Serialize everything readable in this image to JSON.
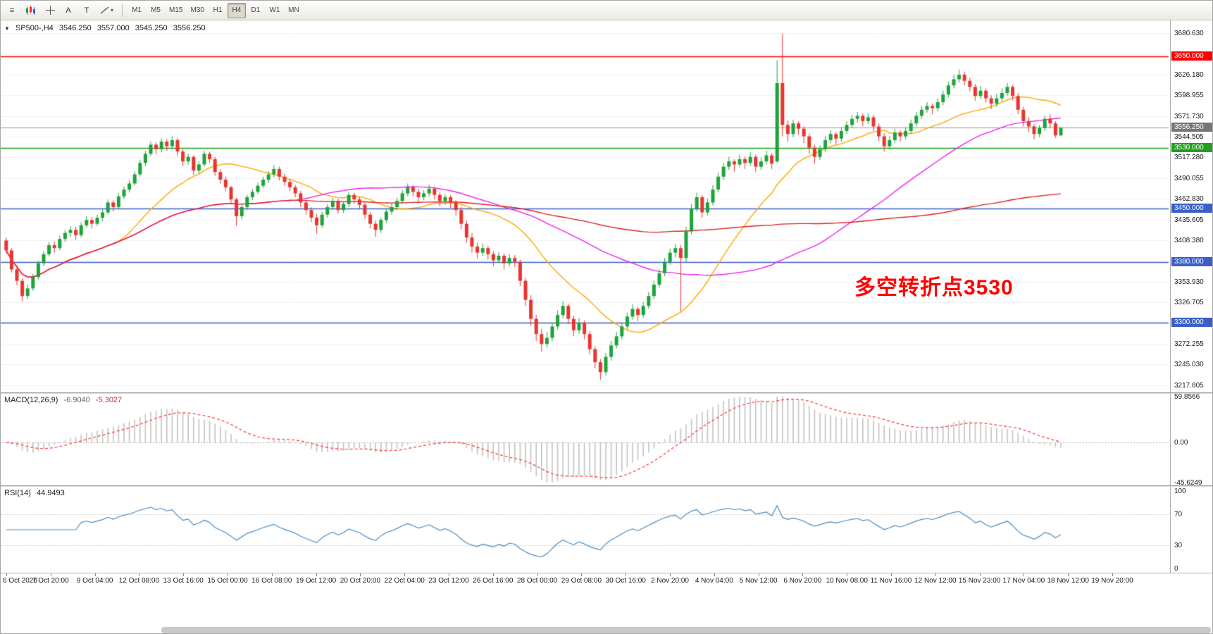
{
  "toolbar": {
    "menu_glyph": "≡",
    "text_tool_label": "A",
    "shape_tool_label": "T",
    "timeframes": [
      "M1",
      "M5",
      "M15",
      "M30",
      "H1",
      "H4",
      "D1",
      "W1",
      "MN"
    ],
    "active_timeframe": "H4"
  },
  "icons": {
    "menu": "≡",
    "dropdown": "▾",
    "collapse": "▼",
    "crosshair": "+"
  },
  "chart": {
    "symbol_label": "SP500-,H4",
    "open": "3546.250",
    "high": "3557.000",
    "low": "3545.250",
    "close": "3556.250",
    "annotation": {
      "text": "多空转折点3530",
      "color": "#ff0000"
    },
    "levels": [
      {
        "price": 3650,
        "label": "3650.000",
        "color": "#ff0000"
      },
      {
        "price": 3530,
        "label": "3530.000",
        "color": "#1fa11f"
      },
      {
        "price": 3450,
        "label": "3450.000",
        "color": "#3a5fc8"
      },
      {
        "price": 3380,
        "label": "3380.000",
        "color": "#3a5fc8"
      },
      {
        "price": 3300,
        "label": "3300.000",
        "color": "#3a5fc8"
      }
    ],
    "current_price": {
      "value": 3556.25,
      "label": "3556.250",
      "badge_color": "#75757d",
      "line_color": "#9a9a9a"
    },
    "price_axis_ticks": [
      "3680.630",
      "3653.405",
      "3626.180",
      "3598.955",
      "3571.730",
      "3544.505",
      "3517.280",
      "3490.055",
      "3462.830",
      "3435.605",
      "3408.380",
      "3381.155",
      "3353.930",
      "3326.705",
      "3299.480",
      "3272.255",
      "3245.030",
      "3217.805"
    ],
    "time_axis": [
      "6 Oct 2020",
      "7 Oct 20:00",
      "9 Oct 04:00",
      "12 Oct 08:00",
      "13 Oct 16:00",
      "15 Oct 00:00",
      "16 Oct 08:00",
      "19 Oct 12:00",
      "20 Oct 20:00",
      "22 Oct 04:00",
      "23 Oct 12:00",
      "26 Oct 16:00",
      "28 Oct 00:00",
      "29 Oct 08:00",
      "30 Oct 16:00",
      "2 Nov 20:00",
      "4 Nov 04:00",
      "5 Nov 12:00",
      "6 Nov 20:00",
      "10 Nov 08:00",
      "11 Nov 16:00",
      "12 Nov 12:00",
      "15 Nov 23:00",
      "17 Nov 04:00",
      "18 Nov 12:00",
      "19 Nov 20:00"
    ]
  },
  "indicators": {
    "macd": {
      "label": "MACD(12,26,9)",
      "value_main": "-6.9040",
      "value_signal": "-5.3027",
      "fast": 12,
      "slow": 26,
      "signal": 9,
      "scale": {
        "max": "59.8566",
        "mid": "0.00",
        "min": "-45.6249"
      }
    },
    "rsi": {
      "label": "RSI(14)",
      "value": "44.9493",
      "period": 14,
      "levels": [
        70,
        30
      ],
      "scale": [
        "100",
        "70",
        "30",
        "0"
      ]
    }
  },
  "colors": {
    "up": "#1fa23a",
    "down": "#e8352e",
    "grid": "#f0f0f0",
    "macd_hist": "#c2c2c2",
    "macd_signal": "#ff3333",
    "rsi_line": "#4a8bc2",
    "level_dotted": "#c8c8c8"
  },
  "chart_data": {
    "type": "candlestick",
    "title": "SP500-,H4",
    "ylim": [
      3212,
      3690
    ],
    "rsi_ylim": [
      0,
      100
    ],
    "moving_averages": [
      {
        "name": "fast",
        "period": 21,
        "color": "#ffa500"
      },
      {
        "name": "medium",
        "period": 55,
        "color": "#ee22ee"
      },
      {
        "name": "slow",
        "period": 120,
        "color": "#dd2222"
      }
    ],
    "ohlc": [
      [
        3408,
        3412,
        3390,
        3395
      ],
      [
        3395,
        3398,
        3366,
        3370
      ],
      [
        3370,
        3376,
        3349,
        3355
      ],
      [
        3355,
        3358,
        3328,
        3335
      ],
      [
        3335,
        3350,
        3331,
        3345
      ],
      [
        3345,
        3364,
        3342,
        3360
      ],
      [
        3360,
        3381,
        3357,
        3378
      ],
      [
        3378,
        3394,
        3374,
        3390
      ],
      [
        3390,
        3406,
        3387,
        3402
      ],
      [
        3402,
        3407,
        3392,
        3398
      ],
      [
        3398,
        3414,
        3395,
        3410
      ],
      [
        3410,
        3422,
        3406,
        3418
      ],
      [
        3418,
        3427,
        3413,
        3422
      ],
      [
        3422,
        3426,
        3409,
        3415
      ],
      [
        3415,
        3432,
        3412,
        3428
      ],
      [
        3428,
        3440,
        3425,
        3435
      ],
      [
        3435,
        3439,
        3424,
        3430
      ],
      [
        3430,
        3442,
        3427,
        3438
      ],
      [
        3438,
        3449,
        3434,
        3445
      ],
      [
        3445,
        3462,
        3442,
        3458
      ],
      [
        3458,
        3461,
        3446,
        3452
      ],
      [
        3452,
        3470,
        3449,
        3466
      ],
      [
        3466,
        3479,
        3463,
        3475
      ],
      [
        3475,
        3487,
        3471,
        3483
      ],
      [
        3483,
        3499,
        3480,
        3495
      ],
      [
        3495,
        3514,
        3492,
        3510
      ],
      [
        3510,
        3526,
        3506,
        3522
      ],
      [
        3522,
        3538,
        3519,
        3534
      ],
      [
        3534,
        3537,
        3521,
        3528
      ],
      [
        3528,
        3542,
        3524,
        3538
      ],
      [
        3538,
        3541,
        3526,
        3532
      ],
      [
        3532,
        3545,
        3529,
        3540
      ],
      [
        3540,
        3543,
        3519,
        3525
      ],
      [
        3525,
        3528,
        3506,
        3512
      ],
      [
        3512,
        3522,
        3508,
        3518
      ],
      [
        3518,
        3520,
        3494,
        3500
      ],
      [
        3500,
        3512,
        3496,
        3508
      ],
      [
        3508,
        3526,
        3505,
        3522
      ],
      [
        3522,
        3525,
        3510,
        3515
      ],
      [
        3515,
        3518,
        3493,
        3498
      ],
      [
        3498,
        3502,
        3483,
        3488
      ],
      [
        3488,
        3492,
        3473,
        3478
      ],
      [
        3478,
        3480,
        3456,
        3462
      ],
      [
        3462,
        3464,
        3427,
        3440
      ],
      [
        3440,
        3456,
        3436,
        3452
      ],
      [
        3452,
        3468,
        3448,
        3465
      ],
      [
        3465,
        3476,
        3461,
        3472
      ],
      [
        3472,
        3484,
        3469,
        3480
      ],
      [
        3480,
        3492,
        3477,
        3488
      ],
      [
        3488,
        3499,
        3484,
        3495
      ],
      [
        3495,
        3507,
        3491,
        3502
      ],
      [
        3502,
        3505,
        3487,
        3492
      ],
      [
        3492,
        3496,
        3480,
        3485
      ],
      [
        3485,
        3489,
        3473,
        3478
      ],
      [
        3478,
        3481,
        3465,
        3470
      ],
      [
        3470,
        3473,
        3452,
        3458
      ],
      [
        3458,
        3462,
        3442,
        3448
      ],
      [
        3448,
        3452,
        3432,
        3438
      ],
      [
        3438,
        3443,
        3417,
        3428
      ],
      [
        3428,
        3446,
        3425,
        3442
      ],
      [
        3442,
        3456,
        3438,
        3452
      ],
      [
        3452,
        3464,
        3448,
        3460
      ],
      [
        3460,
        3463,
        3443,
        3448
      ],
      [
        3448,
        3459,
        3444,
        3456
      ],
      [
        3456,
        3472,
        3452,
        3468
      ],
      [
        3468,
        3471,
        3456,
        3462
      ],
      [
        3462,
        3465,
        3449,
        3455
      ],
      [
        3455,
        3458,
        3436,
        3442
      ],
      [
        3442,
        3446,
        3424,
        3430
      ],
      [
        3430,
        3434,
        3413,
        3422
      ],
      [
        3422,
        3438,
        3418,
        3435
      ],
      [
        3435,
        3450,
        3431,
        3446
      ],
      [
        3446,
        3457,
        3442,
        3452
      ],
      [
        3452,
        3464,
        3448,
        3460
      ],
      [
        3460,
        3474,
        3456,
        3470
      ],
      [
        3470,
        3483,
        3466,
        3478
      ],
      [
        3478,
        3481,
        3466,
        3472
      ],
      [
        3472,
        3476,
        3458,
        3465
      ],
      [
        3465,
        3474,
        3461,
        3470
      ],
      [
        3470,
        3481,
        3466,
        3476
      ],
      [
        3476,
        3479,
        3462,
        3468
      ],
      [
        3468,
        3471,
        3453,
        3460
      ],
      [
        3460,
        3469,
        3455,
        3465
      ],
      [
        3465,
        3468,
        3451,
        3458
      ],
      [
        3458,
        3461,
        3441,
        3448
      ],
      [
        3448,
        3452,
        3423,
        3430
      ],
      [
        3430,
        3434,
        3405,
        3412
      ],
      [
        3412,
        3418,
        3392,
        3400
      ],
      [
        3400,
        3405,
        3384,
        3392
      ],
      [
        3392,
        3404,
        3388,
        3398
      ],
      [
        3398,
        3401,
        3383,
        3390
      ],
      [
        3390,
        3394,
        3374,
        3382
      ],
      [
        3382,
        3393,
        3378,
        3388
      ],
      [
        3388,
        3391,
        3370,
        3378
      ],
      [
        3378,
        3390,
        3374,
        3385
      ],
      [
        3385,
        3389,
        3373,
        3380
      ],
      [
        3380,
        3383,
        3348,
        3355
      ],
      [
        3355,
        3359,
        3322,
        3330
      ],
      [
        3330,
        3336,
        3296,
        3305
      ],
      [
        3305,
        3310,
        3276,
        3285
      ],
      [
        3285,
        3292,
        3262,
        3272
      ],
      [
        3272,
        3288,
        3267,
        3280
      ],
      [
        3280,
        3300,
        3276,
        3295
      ],
      [
        3295,
        3316,
        3291,
        3310
      ],
      [
        3310,
        3328,
        3306,
        3322
      ],
      [
        3322,
        3325,
        3298,
        3305
      ],
      [
        3305,
        3309,
        3282,
        3290
      ],
      [
        3290,
        3306,
        3285,
        3300
      ],
      [
        3300,
        3303,
        3278,
        3285
      ],
      [
        3285,
        3289,
        3258,
        3265
      ],
      [
        3265,
        3269,
        3240,
        3248
      ],
      [
        3248,
        3252,
        3225,
        3235
      ],
      [
        3235,
        3260,
        3231,
        3255
      ],
      [
        3255,
        3276,
        3250,
        3270
      ],
      [
        3270,
        3288,
        3266,
        3282
      ],
      [
        3282,
        3300,
        3278,
        3295
      ],
      [
        3295,
        3313,
        3291,
        3308
      ],
      [
        3308,
        3324,
        3304,
        3318
      ],
      [
        3318,
        3321,
        3302,
        3310
      ],
      [
        3310,
        3327,
        3306,
        3322
      ],
      [
        3322,
        3340,
        3318,
        3335
      ],
      [
        3335,
        3355,
        3331,
        3350
      ],
      [
        3350,
        3370,
        3346,
        3365
      ],
      [
        3365,
        3385,
        3361,
        3380
      ],
      [
        3380,
        3397,
        3376,
        3392
      ],
      [
        3392,
        3403,
        3386,
        3398
      ],
      [
        3398,
        3402,
        3315,
        3385
      ],
      [
        3385,
        3426,
        3380,
        3420
      ],
      [
        3420,
        3456,
        3416,
        3450
      ],
      [
        3450,
        3471,
        3446,
        3465
      ],
      [
        3465,
        3468,
        3438,
        3445
      ],
      [
        3445,
        3463,
        3441,
        3458
      ],
      [
        3458,
        3481,
        3454,
        3475
      ],
      [
        3475,
        3497,
        3471,
        3492
      ],
      [
        3492,
        3510,
        3488,
        3505
      ],
      [
        3505,
        3518,
        3501,
        3512
      ],
      [
        3512,
        3515,
        3498,
        3508
      ],
      [
        3508,
        3521,
        3504,
        3515
      ],
      [
        3515,
        3518,
        3502,
        3510
      ],
      [
        3510,
        3524,
        3506,
        3518
      ],
      [
        3518,
        3521,
        3498,
        3505
      ],
      [
        3505,
        3517,
        3501,
        3512
      ],
      [
        3512,
        3526,
        3508,
        3520
      ],
      [
        3520,
        3523,
        3502,
        3509
      ],
      [
        3512,
        3645,
        3510,
        3615
      ],
      [
        3615,
        3680,
        3545,
        3560
      ],
      [
        3560,
        3566,
        3538,
        3548
      ],
      [
        3548,
        3567,
        3544,
        3562
      ],
      [
        3562,
        3565,
        3547,
        3555
      ],
      [
        3555,
        3558,
        3536,
        3545
      ],
      [
        3545,
        3549,
        3522,
        3530
      ],
      [
        3530,
        3534,
        3509,
        3518
      ],
      [
        3518,
        3533,
        3514,
        3528
      ],
      [
        3528,
        3545,
        3524,
        3540
      ],
      [
        3540,
        3553,
        3536,
        3548
      ],
      [
        3548,
        3551,
        3534,
        3542
      ],
      [
        3542,
        3557,
        3538,
        3552
      ],
      [
        3552,
        3565,
        3548,
        3560
      ],
      [
        3560,
        3573,
        3556,
        3568
      ],
      [
        3568,
        3577,
        3563,
        3572
      ],
      [
        3572,
        3575,
        3558,
        3565
      ],
      [
        3565,
        3575,
        3561,
        3570
      ],
      [
        3570,
        3573,
        3552,
        3558
      ],
      [
        3558,
        3562,
        3539,
        3545
      ],
      [
        3545,
        3549,
        3525,
        3532
      ],
      [
        3532,
        3545,
        3528,
        3540
      ],
      [
        3540,
        3555,
        3536,
        3550
      ],
      [
        3550,
        3553,
        3538,
        3545
      ],
      [
        3545,
        3557,
        3541,
        3552
      ],
      [
        3552,
        3567,
        3548,
        3562
      ],
      [
        3562,
        3577,
        3558,
        3572
      ],
      [
        3572,
        3585,
        3568,
        3580
      ],
      [
        3580,
        3590,
        3576,
        3585
      ],
      [
        3585,
        3588,
        3574,
        3582
      ],
      [
        3582,
        3595,
        3578,
        3590
      ],
      [
        3590,
        3605,
        3586,
        3600
      ],
      [
        3600,
        3617,
        3596,
        3612
      ],
      [
        3612,
        3626,
        3608,
        3620
      ],
      [
        3620,
        3633,
        3616,
        3626
      ],
      [
        3626,
        3630,
        3612,
        3618
      ],
      [
        3618,
        3622,
        3604,
        3610
      ],
      [
        3610,
        3614,
        3592,
        3598
      ],
      [
        3598,
        3611,
        3594,
        3605
      ],
      [
        3605,
        3608,
        3589,
        3595
      ],
      [
        3595,
        3599,
        3581,
        3588
      ],
      [
        3588,
        3601,
        3584,
        3595
      ],
      [
        3595,
        3608,
        3591,
        3602
      ],
      [
        3602,
        3615,
        3598,
        3610
      ],
      [
        3610,
        3613,
        3592,
        3598
      ],
      [
        3598,
        3602,
        3574,
        3580
      ],
      [
        3580,
        3584,
        3558,
        3565
      ],
      [
        3565,
        3570,
        3551,
        3558
      ],
      [
        3558,
        3561,
        3541,
        3548
      ],
      [
        3548,
        3560,
        3544,
        3556
      ],
      [
        3556,
        3572,
        3552,
        3568
      ],
      [
        3568,
        3574,
        3556,
        3562
      ],
      [
        3562,
        3565,
        3543,
        3546.25
      ],
      [
        3546.25,
        3557,
        3545.25,
        3556.25
      ]
    ]
  }
}
